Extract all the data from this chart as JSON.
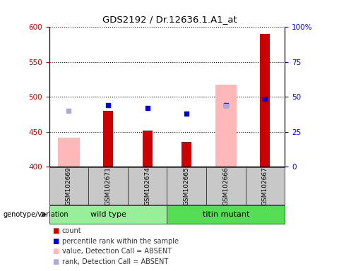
{
  "title": "GDS2192 / Dr.12636.1.A1_at",
  "samples": [
    "GSM102669",
    "GSM102671",
    "GSM102674",
    "GSM102665",
    "GSM102666",
    "GSM102667"
  ],
  "ylim_left": [
    400,
    600
  ],
  "ylim_right": [
    0,
    100
  ],
  "yticks_left": [
    400,
    450,
    500,
    550,
    600
  ],
  "yticks_right": [
    0,
    25,
    50,
    75,
    100
  ],
  "ytick_labels_right": [
    "0",
    "25",
    "50",
    "75",
    "100%"
  ],
  "count_values": [
    null,
    480,
    452,
    436,
    null,
    590
  ],
  "rank_values": [
    null,
    488,
    484,
    476,
    488,
    497
  ],
  "absent_value_vals": [
    442,
    null,
    null,
    null,
    517,
    null
  ],
  "absent_rank_vals": [
    480,
    null,
    null,
    null,
    487,
    null
  ],
  "bar_color_red": "#cc0000",
  "bar_color_pink": "#ffb8b8",
  "dot_color_blue": "#0000cc",
  "dot_color_lightblue": "#aaaadd",
  "wt_color": "#99ee99",
  "mut_color": "#55dd55",
  "bg_color": "#c8c8c8",
  "plot_area_bg": "#ffffff"
}
